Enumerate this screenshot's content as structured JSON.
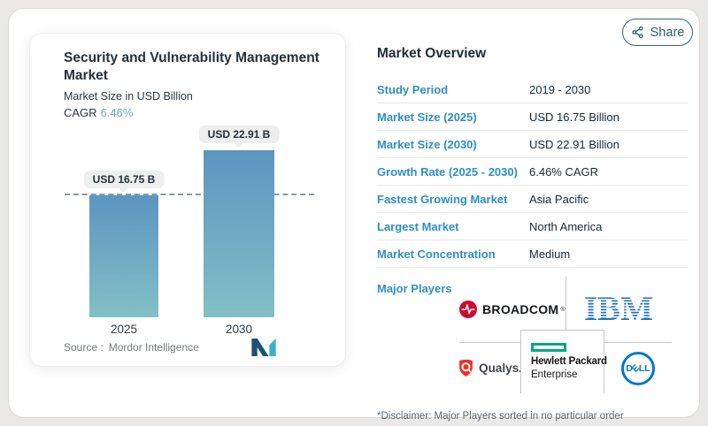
{
  "share": {
    "label": "Share"
  },
  "chart_card": {
    "title": "Security and Vulnerability Management Market",
    "subtitle": "Market Size in USD Billion",
    "cagr_label": "CAGR",
    "cagr_value": "6.46%",
    "source_label": "Source :",
    "source_value": "Mordor Intelligence"
  },
  "chart_data": {
    "type": "bar",
    "categories": [
      "2025",
      "2030"
    ],
    "values": [
      16.75,
      22.91
    ],
    "bar_labels": [
      "USD 16.75 B",
      "USD 22.91 B"
    ],
    "title": "Security and Vulnerability Management Market",
    "ylabel": "Market Size in USD Billion",
    "cagr": "6.46%",
    "reference_line": 16.75,
    "legend": "none",
    "grid": "off",
    "colors": {
      "bar_top": "#5C95C0",
      "bar_bottom": "#82C0C6",
      "reference_line": "#7E9BB6",
      "badge_bg": "#EDEFED"
    }
  },
  "overview": {
    "title": "Market Overview",
    "rows": [
      {
        "label": "Study Period",
        "value": "2019 - 2030"
      },
      {
        "label": "Market Size (2025)",
        "value": "USD 16.75 Billion"
      },
      {
        "label": "Market Size (2030)",
        "value": "USD 22.91 Billion"
      },
      {
        "label": "Growth Rate (2025 - 2030)",
        "value": "6.46% CAGR"
      },
      {
        "label": "Fastest Growing Market",
        "value": "Asia Pacific"
      },
      {
        "label": "Largest Market",
        "value": "North America"
      },
      {
        "label": "Market Concentration",
        "value": "Medium"
      }
    ],
    "major_players_label": "Major Players",
    "players": [
      "Broadcom",
      "IBM",
      "Qualys",
      "Hewlett Packard Enterprise",
      "Dell"
    ],
    "disclaimer": "*Disclaimer: Major Players sorted in no particular order"
  },
  "logos": {
    "broadcom_text": "BROADCOM",
    "broadcom_reg": "®",
    "ibm_text": "IBM",
    "qualys_text": "Qualys.",
    "hpe_line1": "Hewlett Packard",
    "hpe_line2": "Enterprise",
    "dell_letters": [
      "D",
      "E",
      "L",
      "L"
    ]
  },
  "colors": {
    "accent_blue": "#2E8FC5",
    "navy_text": "#16293B",
    "cagr_teal": "#6BA7C8",
    "broadcom_red": "#CC092F",
    "ibm_blue": "#1F70C1",
    "qualys_red": "#ED2E26",
    "hpe_green": "#01A982",
    "dell_blue": "#0076CE",
    "mordor_navy": "#1A5276",
    "mordor_teal": "#38B2C8"
  }
}
